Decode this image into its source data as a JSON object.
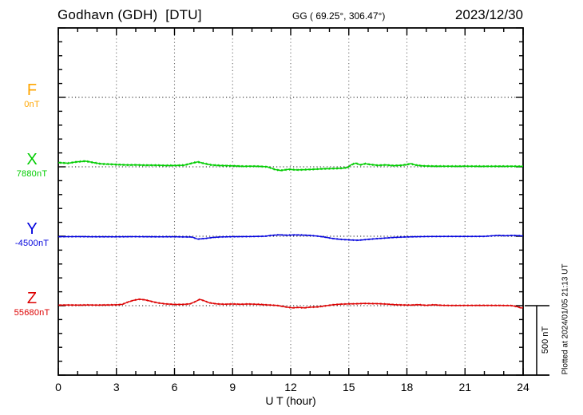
{
  "header": {
    "title": "Godhavn (GDH)  [DTU]",
    "coordinates": "GG ( 69.25°, 306.47°)",
    "date": "2023/12/30"
  },
  "footer": {
    "plotted_at": "Plotted at 2024/01/05 21:13 UT"
  },
  "colors": {
    "frame": "#000000",
    "grid": "#6e6e6e",
    "baseline": "#151515",
    "component_f": "#FFA500",
    "component_x": "#00CC00",
    "component_y": "#0000DD",
    "component_z": "#DD0000"
  },
  "chart_data": {
    "type": "line",
    "title": "Godhavn (GDH) [DTU]",
    "subtitle": "GG ( 69.25°, 306.47°)",
    "date": "2023/12/30",
    "xlabel": "U T (hour)",
    "x_range_hours": [
      0,
      24
    ],
    "x_major_ticks": [
      0,
      3,
      6,
      9,
      12,
      15,
      18,
      21,
      24
    ],
    "x_minor_step_hours": 1,
    "y_span_nT": 2500,
    "y_minor_step_nT": 100,
    "y_major_step_nT": 500,
    "grid": "vertical dotted gridlines every 3 hours; dotted horizontal baseline for each component",
    "legend_position": "left margin component labels",
    "scale_bar": {
      "label": "500 nT",
      "value_nT": 500
    },
    "series": [
      {
        "name": "F",
        "baseline_label": "0nT",
        "baseline_value_nT": 0,
        "color": "#FFA500",
        "baseline_offset_from_top_nT": 500,
        "has_trace": false,
        "noise_nT": 0,
        "seed": 0,
        "keypoints_hour_nT": []
      },
      {
        "name": "X",
        "baseline_label": "7880nT",
        "baseline_value_nT": 7880,
        "color": "#00CC00",
        "baseline_offset_from_top_nT": 1000,
        "has_trace": true,
        "noise_nT": 5,
        "seed": 1,
        "keypoints_hour_nT": [
          [
            0,
            30
          ],
          [
            0.5,
            25
          ],
          [
            0.9,
            34
          ],
          [
            1.4,
            40
          ],
          [
            1.8,
            30
          ],
          [
            2.2,
            20
          ],
          [
            2.6,
            18
          ],
          [
            3,
            15
          ],
          [
            3.5,
            12
          ],
          [
            4,
            12
          ],
          [
            4.5,
            10
          ],
          [
            5,
            10
          ],
          [
            5.5,
            8
          ],
          [
            6,
            8
          ],
          [
            6.5,
            10
          ],
          [
            7,
            28
          ],
          [
            7.2,
            34
          ],
          [
            7.5,
            24
          ],
          [
            7.9,
            12
          ],
          [
            8.4,
            8
          ],
          [
            9,
            6
          ],
          [
            9.6,
            3
          ],
          [
            10.2,
            4
          ],
          [
            10.8,
            0
          ],
          [
            11.2,
            -20
          ],
          [
            11.5,
            -26
          ],
          [
            11.9,
            -18
          ],
          [
            12.3,
            -22
          ],
          [
            12.7,
            -20
          ],
          [
            13.1,
            -18
          ],
          [
            13.6,
            -14
          ],
          [
            14.1,
            -12
          ],
          [
            14.6,
            -10
          ],
          [
            14.95,
            -4
          ],
          [
            15.1,
            14
          ],
          [
            15.35,
            28
          ],
          [
            15.6,
            15
          ],
          [
            15.85,
            24
          ],
          [
            16.1,
            18
          ],
          [
            16.5,
            12
          ],
          [
            16.9,
            15
          ],
          [
            17.3,
            10
          ],
          [
            17.7,
            12
          ],
          [
            18,
            18
          ],
          [
            18.2,
            24
          ],
          [
            18.45,
            14
          ],
          [
            18.8,
            8
          ],
          [
            19.3,
            6
          ],
          [
            20,
            5
          ],
          [
            21,
            5
          ],
          [
            22,
            4
          ],
          [
            23,
            4
          ],
          [
            24,
            3
          ]
        ]
      },
      {
        "name": "Y",
        "baseline_label": "-4500nT",
        "baseline_value_nT": -4500,
        "color": "#0000DD",
        "baseline_offset_from_top_nT": 1500,
        "has_trace": true,
        "noise_nT": 3.5,
        "seed": 2,
        "keypoints_hour_nT": [
          [
            0,
            -3
          ],
          [
            1,
            -2
          ],
          [
            2,
            -3
          ],
          [
            3,
            -3
          ],
          [
            4,
            -2
          ],
          [
            5,
            -3
          ],
          [
            6,
            -3
          ],
          [
            6.9,
            -5
          ],
          [
            7.2,
            -20
          ],
          [
            7.6,
            -15
          ],
          [
            8,
            -8
          ],
          [
            8.5,
            -4
          ],
          [
            9,
            -3
          ],
          [
            10,
            -2
          ],
          [
            10.7,
            0
          ],
          [
            11,
            6
          ],
          [
            11.4,
            10
          ],
          [
            11.8,
            7
          ],
          [
            12.2,
            9
          ],
          [
            12.6,
            8
          ],
          [
            13,
            5
          ],
          [
            13.4,
            0
          ],
          [
            13.8,
            -8
          ],
          [
            14.2,
            -18
          ],
          [
            14.7,
            -25
          ],
          [
            15.1,
            -28
          ],
          [
            15.5,
            -30
          ],
          [
            15.9,
            -25
          ],
          [
            16.3,
            -20
          ],
          [
            16.8,
            -15
          ],
          [
            17.3,
            -10
          ],
          [
            17.8,
            -7
          ],
          [
            18.3,
            -5
          ],
          [
            19,
            -3
          ],
          [
            20,
            -2
          ],
          [
            21,
            -2
          ],
          [
            22,
            -1
          ],
          [
            22.7,
            6
          ],
          [
            23.1,
            4
          ],
          [
            23.5,
            6
          ],
          [
            24,
            3
          ]
        ]
      },
      {
        "name": "Z",
        "baseline_label": "55680nT",
        "baseline_value_nT": 55680,
        "color": "#DD0000",
        "baseline_offset_from_top_nT": 2000,
        "has_trace": true,
        "noise_nT": 4,
        "seed": 3,
        "keypoints_hour_nT": [
          [
            0,
            3
          ],
          [
            0.5,
            4
          ],
          [
            1,
            3
          ],
          [
            1.5,
            4
          ],
          [
            2,
            3
          ],
          [
            2.5,
            4
          ],
          [
            3,
            5
          ],
          [
            3.3,
            8
          ],
          [
            3.6,
            25
          ],
          [
            3.9,
            38
          ],
          [
            4.2,
            45
          ],
          [
            4.5,
            40
          ],
          [
            4.8,
            30
          ],
          [
            5.1,
            20
          ],
          [
            5.5,
            12
          ],
          [
            6,
            8
          ],
          [
            6.4,
            8
          ],
          [
            6.8,
            12
          ],
          [
            7.1,
            30
          ],
          [
            7.3,
            45
          ],
          [
            7.55,
            34
          ],
          [
            7.8,
            20
          ],
          [
            8.2,
            12
          ],
          [
            8.6,
            10
          ],
          [
            9,
            12
          ],
          [
            9.4,
            10
          ],
          [
            9.8,
            12
          ],
          [
            10.3,
            10
          ],
          [
            10.8,
            6
          ],
          [
            11.3,
            2
          ],
          [
            11.8,
            -10
          ],
          [
            12.1,
            -15
          ],
          [
            12.4,
            -12
          ],
          [
            12.7,
            -15
          ],
          [
            13,
            -10
          ],
          [
            13.4,
            -8
          ],
          [
            13.8,
            0
          ],
          [
            14.2,
            8
          ],
          [
            14.6,
            12
          ],
          [
            15,
            14
          ],
          [
            15.4,
            15
          ],
          [
            15.8,
            17
          ],
          [
            16.2,
            16
          ],
          [
            16.6,
            15
          ],
          [
            17,
            12
          ],
          [
            17.4,
            8
          ],
          [
            17.8,
            6
          ],
          [
            18.2,
            5
          ],
          [
            18.6,
            8
          ],
          [
            19,
            3
          ],
          [
            19.4,
            7
          ],
          [
            19.8,
            3
          ],
          [
            20.3,
            2
          ],
          [
            21,
            2
          ],
          [
            22,
            2
          ],
          [
            23,
            1
          ],
          [
            23.4,
            0
          ],
          [
            23.7,
            -8
          ],
          [
            23.9,
            -18
          ],
          [
            24,
            -15
          ]
        ]
      }
    ]
  }
}
